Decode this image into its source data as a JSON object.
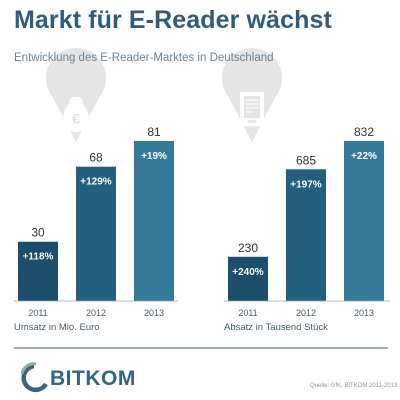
{
  "title": "Markt für E-Reader wächst",
  "subtitle": "Entwicklung des E-Reader-Marktes in Deutschland",
  "source": "Quelle: GfK, BITKOM 2011-2013",
  "logo": {
    "text": "BITKOM"
  },
  "colors": {
    "title": "#2f5c7d",
    "bar_dark": "#1c4d6b",
    "bar_mid": "#255f80",
    "bar_light": "#357a99",
    "pin": "#e5e5e5",
    "baseline": "#9aa4ab"
  },
  "icons": [
    "money-bag-icon",
    "ereader-icon",
    "bitkom-logo-icon"
  ],
  "chart_data": [
    {
      "type": "bar",
      "categories": [
        "2011",
        "2012",
        "2013"
      ],
      "values": [
        30,
        68,
        81
      ],
      "growth_labels": [
        "+118%",
        "+129%",
        "+19%"
      ],
      "xlabel": "Umsatz in Mio. Euro",
      "ylim": [
        0,
        81
      ]
    },
    {
      "type": "bar",
      "categories": [
        "2011",
        "2012",
        "2013"
      ],
      "values": [
        230,
        685,
        832
      ],
      "growth_labels": [
        "+240%",
        "+197%",
        "+22%"
      ],
      "xlabel": "Absatz in Tausend Stück",
      "ylim": [
        0,
        832
      ]
    }
  ]
}
